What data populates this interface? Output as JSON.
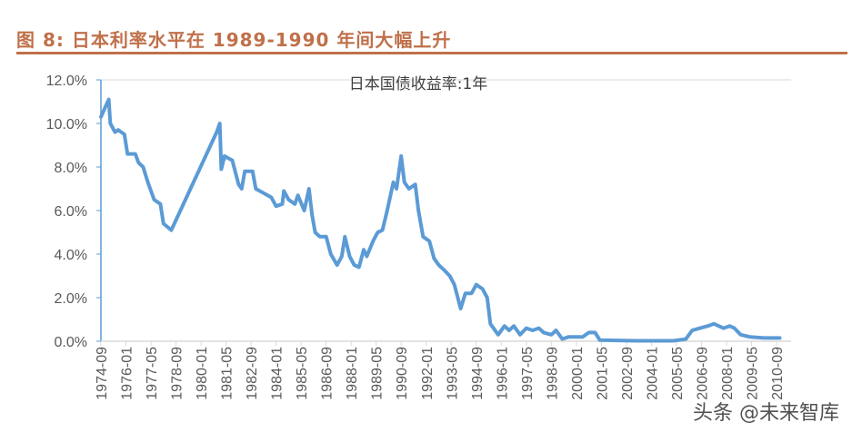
{
  "figure_title": "图 8:  日本利率水平在 1989-1990 年间大幅上升",
  "watermark": "头条 @未来智库",
  "chart_data": {
    "type": "line",
    "title": "",
    "xlabel": "",
    "ylabel": "",
    "ylim": [
      0,
      12
    ],
    "ytick_labels": [
      "0.0%",
      "2.0%",
      "4.0%",
      "6.0%",
      "8.0%",
      "10.0%",
      "12.0%"
    ],
    "xtick_labels": [
      "1974-09",
      "1976-01",
      "1977-05",
      "1978-09",
      "1980-01",
      "1981-05",
      "1982-09",
      "1984-01",
      "1985-05",
      "1986-09",
      "1988-01",
      "1989-05",
      "1990-09",
      "1992-01",
      "1993-05",
      "1994-09",
      "1996-01",
      "1997-05",
      "1998-09",
      "2000-01",
      "2001-05",
      "2002-09",
      "2004-01",
      "2005-05",
      "2006-09",
      "2008-01",
      "2009-05",
      "2010-09"
    ],
    "legend_position": "top-center",
    "grid": false,
    "colors": {
      "line": "#5b9bd5",
      "axis": "#5b9bd5",
      "title": "#c0704a"
    },
    "series": [
      {
        "name": "日本国债收益率:1年",
        "points": [
          [
            "1974-09",
            10.3
          ],
          [
            "1975-02",
            11.1
          ],
          [
            "1975-03",
            10.0
          ],
          [
            "1975-06",
            9.6
          ],
          [
            "1975-08",
            9.7
          ],
          [
            "1975-12",
            9.5
          ],
          [
            "1976-02",
            8.6
          ],
          [
            "1976-07",
            8.6
          ],
          [
            "1976-09",
            8.2
          ],
          [
            "1976-12",
            8.0
          ],
          [
            "1977-03",
            7.3
          ],
          [
            "1977-07",
            6.5
          ],
          [
            "1977-11",
            6.3
          ],
          [
            "1978-01",
            5.4
          ],
          [
            "1978-06",
            5.1
          ],
          [
            "1980-11",
            9.6
          ],
          [
            "1981-01",
            10.0
          ],
          [
            "1981-02",
            7.9
          ],
          [
            "1981-04",
            8.5
          ],
          [
            "1981-09",
            8.3
          ],
          [
            "1982-01",
            7.2
          ],
          [
            "1982-03",
            7.0
          ],
          [
            "1982-05",
            7.8
          ],
          [
            "1982-10",
            7.8
          ],
          [
            "1982-12",
            7.0
          ],
          [
            "1983-05",
            6.8
          ],
          [
            "1983-10",
            6.6
          ],
          [
            "1984-01",
            6.2
          ],
          [
            "1984-05",
            6.3
          ],
          [
            "1984-06",
            6.9
          ],
          [
            "1984-09",
            6.5
          ],
          [
            "1985-01",
            6.3
          ],
          [
            "1985-03",
            6.7
          ],
          [
            "1985-07",
            6.0
          ],
          [
            "1985-10",
            7.0
          ],
          [
            "1985-12",
            5.8
          ],
          [
            "1986-02",
            5.0
          ],
          [
            "1986-05",
            4.8
          ],
          [
            "1986-09",
            4.8
          ],
          [
            "1986-12",
            4.0
          ],
          [
            "1987-04",
            3.5
          ],
          [
            "1987-07",
            3.9
          ],
          [
            "1987-09",
            4.8
          ],
          [
            "1987-12",
            3.9
          ],
          [
            "1988-03",
            3.5
          ],
          [
            "1988-06",
            3.4
          ],
          [
            "1988-09",
            4.2
          ],
          [
            "1988-11",
            3.9
          ],
          [
            "1989-03",
            4.6
          ],
          [
            "1989-06",
            5.0
          ],
          [
            "1989-09",
            5.1
          ],
          [
            "1989-12",
            6.0
          ],
          [
            "1990-04",
            7.3
          ],
          [
            "1990-06",
            7.0
          ],
          [
            "1990-09",
            8.5
          ],
          [
            "1990-11",
            7.3
          ],
          [
            "1991-02",
            7.0
          ],
          [
            "1991-06",
            7.2
          ],
          [
            "1991-08",
            6.0
          ],
          [
            "1991-11",
            4.8
          ],
          [
            "1992-03",
            4.6
          ],
          [
            "1992-06",
            3.8
          ],
          [
            "1992-09",
            3.5
          ],
          [
            "1992-12",
            3.3
          ],
          [
            "1993-04",
            3.0
          ],
          [
            "1993-07",
            2.6
          ],
          [
            "1993-11",
            1.5
          ],
          [
            "1994-02",
            2.2
          ],
          [
            "1994-06",
            2.2
          ],
          [
            "1994-09",
            2.6
          ],
          [
            "1995-01",
            2.4
          ],
          [
            "1995-04",
            2.0
          ],
          [
            "1995-06",
            0.8
          ],
          [
            "1995-11",
            0.3
          ],
          [
            "1996-03",
            0.7
          ],
          [
            "1996-06",
            0.5
          ],
          [
            "1996-09",
            0.7
          ],
          [
            "1997-01",
            0.3
          ],
          [
            "1997-05",
            0.6
          ],
          [
            "1997-09",
            0.5
          ],
          [
            "1998-01",
            0.6
          ],
          [
            "1998-04",
            0.4
          ],
          [
            "1998-09",
            0.3
          ],
          [
            "1998-12",
            0.5
          ],
          [
            "1999-04",
            0.1
          ],
          [
            "1999-08",
            0.2
          ],
          [
            "2000-05",
            0.2
          ],
          [
            "2000-09",
            0.4
          ],
          [
            "2001-01",
            0.4
          ],
          [
            "2001-04",
            0.05
          ],
          [
            "2003-03",
            0.02
          ],
          [
            "2005-03",
            0.02
          ],
          [
            "2005-11",
            0.1
          ],
          [
            "2006-03",
            0.5
          ],
          [
            "2006-08",
            0.6
          ],
          [
            "2007-01",
            0.7
          ],
          [
            "2007-05",
            0.8
          ],
          [
            "2007-11",
            0.6
          ],
          [
            "2008-03",
            0.7
          ],
          [
            "2008-06",
            0.6
          ],
          [
            "2008-10",
            0.3
          ],
          [
            "2009-04",
            0.2
          ],
          [
            "2010-01",
            0.15
          ],
          [
            "2010-11",
            0.15
          ]
        ]
      }
    ]
  }
}
